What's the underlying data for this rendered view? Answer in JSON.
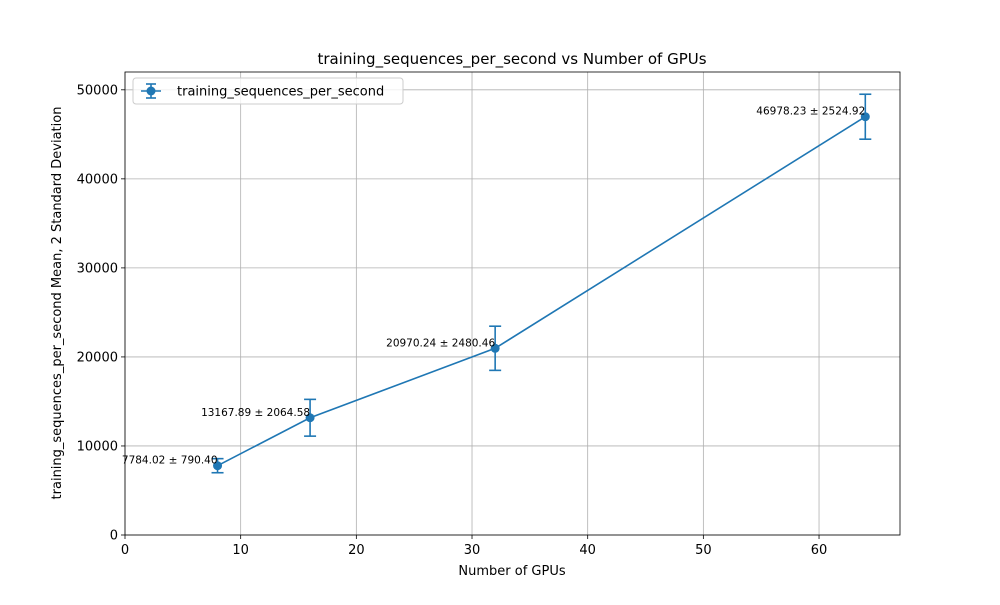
{
  "chart_data": {
    "type": "line",
    "title": "training_sequences_per_second vs Number of GPUs",
    "xlabel": "Number of GPUs",
    "ylabel": "training_sequences_per_second Mean, 2 Standard Deviation",
    "xlim": [
      0,
      67
    ],
    "ylim": [
      0,
      52000
    ],
    "xticks": [
      0,
      10,
      20,
      30,
      40,
      50,
      60
    ],
    "yticks": [
      0,
      10000,
      20000,
      30000,
      40000,
      50000
    ],
    "grid": true,
    "legend_position": "upper-left",
    "series": [
      {
        "name": "training_sequences_per_second",
        "color": "#1f77b4",
        "x": [
          8,
          16,
          32,
          64
        ],
        "y": [
          7784.02,
          13167.89,
          20970.24,
          46978.23
        ],
        "error": [
          790.4,
          2064.58,
          2480.46,
          2524.92
        ],
        "labels": [
          "7784.02 ± 790.40",
          "13167.89 ± 2064.58",
          "20970.24 ± 2480.46",
          "46978.23 ± 2524.92"
        ]
      }
    ]
  }
}
